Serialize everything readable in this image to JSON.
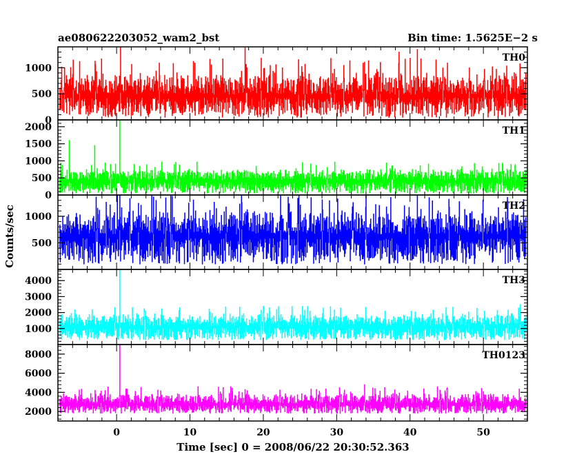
{
  "header": {
    "title": "ae080622203052_wam2_bst",
    "bin_time": "Bin time: 1.5625E−2 s"
  },
  "chart_data": {
    "type": "line",
    "title": "ae080622203052_wam2_bst",
    "subtitle": "Bin time: 1.5625E−2 s",
    "xlabel": "Time [sec] 0 = 2008/06/22 20:30:52.363",
    "ylabel": "Counts/sec",
    "xlim": [
      -8,
      56
    ],
    "x_ticks": [
      0,
      10,
      20,
      30,
      40,
      50
    ],
    "x_tick_labels": [
      "0",
      "10",
      "20",
      "30",
      "40",
      "50"
    ],
    "bin_time_s": 0.015625,
    "data_x_range": [
      -7.8,
      55.8
    ],
    "grid": false,
    "legend": "none",
    "panels": [
      {
        "name": "TH0",
        "color": "#ff0000",
        "ylim": [
          0,
          1400
        ],
        "y_ticks": [
          0,
          500,
          1000
        ],
        "y_tick_labels": [
          "0",
          "500",
          "1000"
        ],
        "baseline_range": [
          50,
          950
        ],
        "mean": 480,
        "peak_values": [
          {
            "x": 0.5,
            "y": 1400
          },
          {
            "x": 17.5,
            "y": 1380
          },
          {
            "x": 41.0,
            "y": 1350
          },
          {
            "x": 38.5,
            "y": 1300
          }
        ]
      },
      {
        "name": "TH1",
        "color": "#00ff00",
        "ylim": [
          0,
          2200
        ],
        "y_ticks": [
          0,
          500,
          1000,
          1500,
          2000
        ],
        "y_tick_labels": [
          "0",
          "500",
          "1000",
          "1500",
          "2000"
        ],
        "baseline_range": [
          50,
          800
        ],
        "mean": 420,
        "peak_values": [
          {
            "x": 0.4,
            "y": 2200
          },
          {
            "x": -6.5,
            "y": 1600
          },
          {
            "x": -3.0,
            "y": 1450
          }
        ]
      },
      {
        "name": "TH2",
        "color": "#0000ff",
        "ylim": [
          0,
          1400
        ],
        "y_ticks": [
          500,
          1000
        ],
        "y_tick_labels": [
          "500",
          "1000"
        ],
        "baseline_range": [
          100,
          1150
        ],
        "mean": 650,
        "peak_values": [
          {
            "x": 0.4,
            "y": 1400
          },
          {
            "x": 17.0,
            "y": 1400
          },
          {
            "x": 34.0,
            "y": 1400
          },
          {
            "x": 41.0,
            "y": 1400
          }
        ]
      },
      {
        "name": "TH3",
        "color": "#00ffff",
        "ylim": [
          0,
          4700
        ],
        "y_ticks": [
          1000,
          2000,
          3000,
          4000
        ],
        "y_tick_labels": [
          "1000",
          "2000",
          "3000",
          "4000"
        ],
        "baseline_range": [
          300,
          2000
        ],
        "mean": 1150,
        "peak_values": [
          {
            "x": 0.4,
            "y": 4700
          },
          {
            "x": 55.0,
            "y": 2500
          },
          {
            "x": 20.0,
            "y": 2400
          }
        ]
      },
      {
        "name": "TH0123",
        "color": "#ff00ff",
        "ylim": [
          1000,
          9000
        ],
        "y_ticks": [
          2000,
          4000,
          6000,
          8000
        ],
        "y_tick_labels": [
          "2000",
          "4000",
          "6000",
          "8000"
        ],
        "baseline_range": [
          1800,
          4000
        ],
        "mean": 2800,
        "peak_values": [
          {
            "x": 0.4,
            "y": 9000
          },
          {
            "x": 33.8,
            "y": 4800
          },
          {
            "x": 14.5,
            "y": 4500
          }
        ]
      }
    ]
  }
}
